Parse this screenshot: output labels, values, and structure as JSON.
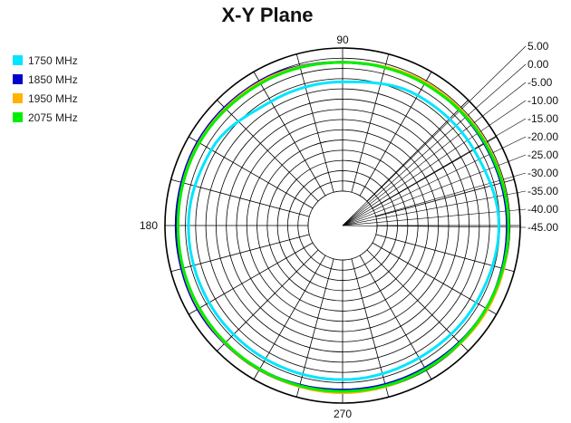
{
  "chart_data": {
    "type": "polar",
    "title": "X-Y Plane",
    "angle_labels": [
      "90",
      "180",
      "270"
    ],
    "radial_ticks": [
      "5.00",
      "0.00",
      "-5.00",
      "-10.00",
      "-15.00",
      "-20.00",
      "-25.00",
      "-30.00",
      "-35.00",
      "-40.00",
      "-45.00"
    ],
    "rlim": [
      -50,
      5
    ],
    "grid": true,
    "legend_position": "top-left",
    "angles_deg": [
      0,
      30,
      60,
      90,
      120,
      150,
      180,
      210,
      240,
      270,
      300,
      330
    ],
    "series": [
      {
        "name": "1750 MHz",
        "color": "#00e5ff",
        "values": [
          -3.2,
          -5.0,
          -5.5,
          -8.0,
          -8.2,
          -5.0,
          -4.0,
          -4.0,
          -4.0,
          -4.0,
          -4.5,
          -4.0
        ]
      },
      {
        "name": "1850 MHz",
        "color": "#0000cc",
        "values": [
          0.0,
          -0.3,
          0.0,
          -0.5,
          0.7,
          1.0,
          0.5,
          1.0,
          0.5,
          0.0,
          0.0,
          0.5
        ]
      },
      {
        "name": "1950 MHz",
        "color": "#ffb300",
        "values": [
          0.5,
          0.3,
          0.3,
          -0.5,
          0.3,
          0.5,
          0.0,
          0.5,
          0.6,
          1.0,
          0.5,
          1.0
        ]
      },
      {
        "name": "2075 MHz",
        "color": "#00ee00",
        "values": [
          0.5,
          0.0,
          -0.3,
          -0.5,
          -0.2,
          0.3,
          0.0,
          0.3,
          0.5,
          0.5,
          0.5,
          0.5
        ]
      }
    ]
  }
}
